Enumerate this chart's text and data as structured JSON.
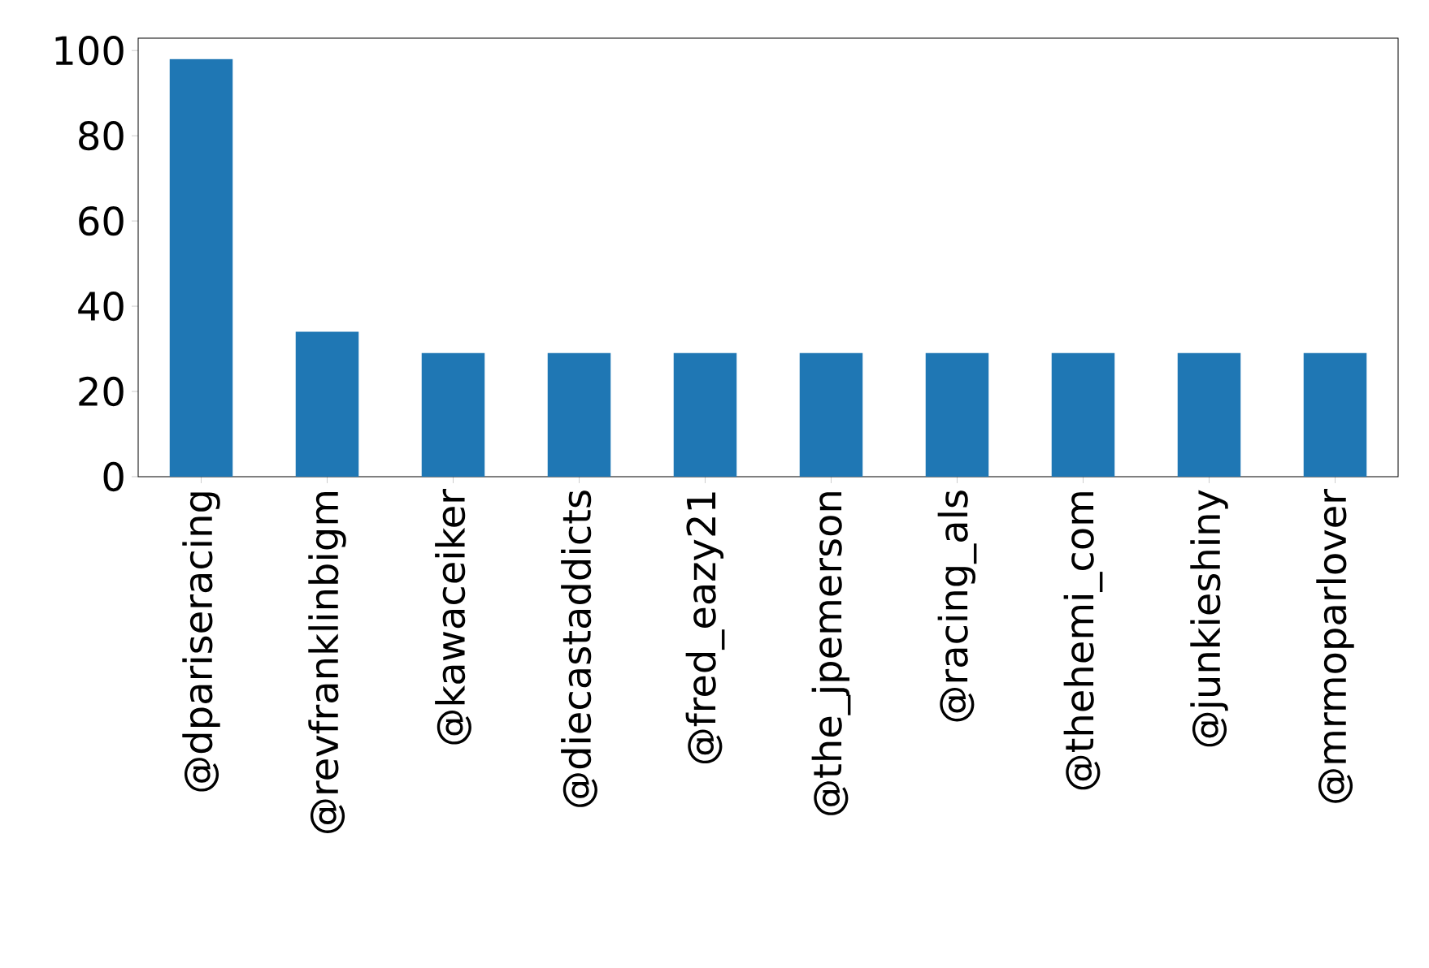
{
  "chart_data": {
    "type": "bar",
    "categories": [
      "@dpariseracing",
      "@revfranklinbigm",
      "@kawaceiker",
      "@diecastaddicts",
      "@fred_eazy21",
      "@the_jpemerson",
      "@racing_als",
      "@thehemi_com",
      "@junkieshiny",
      "@mrmoparlover"
    ],
    "values": [
      98,
      34,
      29,
      29,
      29,
      29,
      29,
      29,
      29,
      29
    ],
    "color": "#1f77b4",
    "ylim": [
      0,
      102.9
    ],
    "yticks": [
      0,
      20,
      40,
      60,
      80,
      100
    ]
  }
}
